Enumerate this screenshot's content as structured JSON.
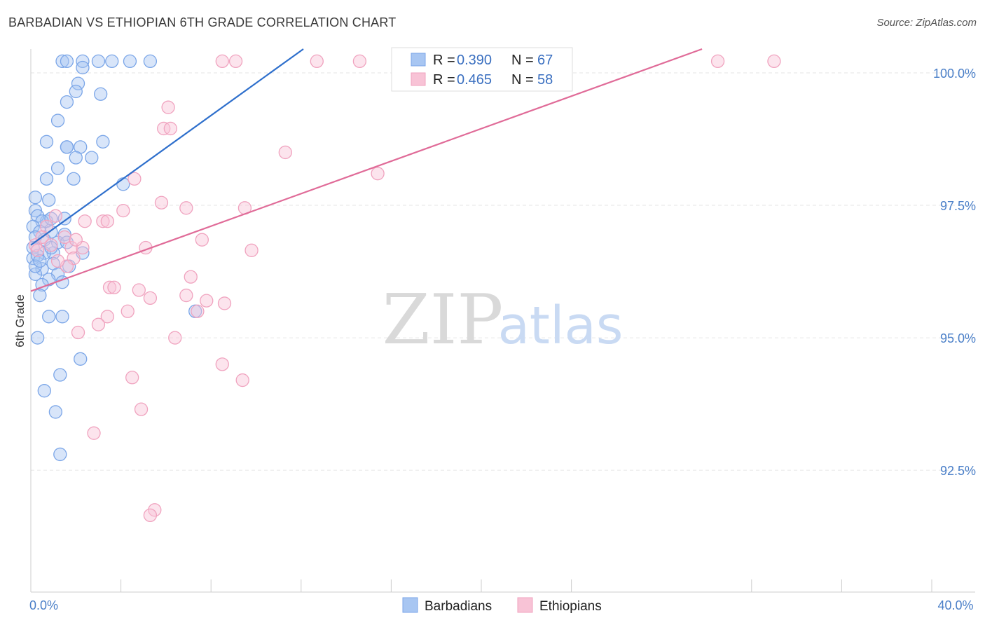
{
  "chart_data": {
    "type": "scatter",
    "title": "BARBADIAN VS ETHIOPIAN 6TH GRADE CORRELATION CHART",
    "source": "Source: ZipAtlas.com",
    "watermark": {
      "zip": "ZIP",
      "atlas": "atlas"
    },
    "ylabel": "6th Grade",
    "xlabel": "",
    "xlim": [
      0,
      40
    ],
    "ylim": [
      90.2,
      100.45
    ],
    "x_ticks": [
      {
        "value": 0,
        "label": "0.0%"
      },
      {
        "value": 40,
        "label": "40.0%"
      }
    ],
    "x_minor_ticks": [
      4,
      8,
      12,
      16,
      20,
      24,
      32,
      36
    ],
    "y_ticks": [
      {
        "value": 100,
        "label": "100.0%"
      },
      {
        "value": 97.5,
        "label": "97.5%"
      },
      {
        "value": 95,
        "label": "95.0%"
      },
      {
        "value": 92.5,
        "label": "92.5%"
      }
    ],
    "legend": {
      "r_label": "R =",
      "n_label": "N =",
      "entries": [
        {
          "r": "0.390",
          "n": "67"
        },
        {
          "r": "0.465",
          "n": "58"
        }
      ]
    },
    "series": [
      {
        "name": "Barbadians",
        "color": "#7ba6e8",
        "fill": "#a8c6f2",
        "line_color": "#2e6fcc",
        "trend": [
          [
            0,
            96.75
          ],
          [
            12.1,
            100.45
          ]
        ],
        "points": [
          [
            1.4,
            100.22
          ],
          [
            1.6,
            100.22
          ],
          [
            2.3,
            100.22
          ],
          [
            3.0,
            100.22
          ],
          [
            3.6,
            100.22
          ],
          [
            4.4,
            100.22
          ],
          [
            5.3,
            100.22
          ],
          [
            2.3,
            100.1
          ],
          [
            2.1,
            99.8
          ],
          [
            2.0,
            99.65
          ],
          [
            3.1,
            99.6
          ],
          [
            1.6,
            99.45
          ],
          [
            1.2,
            99.1
          ],
          [
            0.7,
            98.7
          ],
          [
            1.6,
            98.6
          ],
          [
            1.6,
            98.6
          ],
          [
            2.2,
            98.6
          ],
          [
            3.2,
            98.7
          ],
          [
            2.7,
            98.4
          ],
          [
            2.0,
            98.4
          ],
          [
            1.2,
            98.2
          ],
          [
            0.7,
            98.0
          ],
          [
            1.9,
            98.0
          ],
          [
            4.1,
            97.9
          ],
          [
            0.2,
            97.65
          ],
          [
            0.8,
            97.6
          ],
          [
            0.2,
            97.4
          ],
          [
            0.7,
            97.2
          ],
          [
            0.3,
            97.3
          ],
          [
            0.5,
            97.2
          ],
          [
            0.9,
            97.25
          ],
          [
            1.5,
            97.25
          ],
          [
            0.1,
            97.1
          ],
          [
            0.4,
            97.0
          ],
          [
            0.9,
            97.0
          ],
          [
            1.5,
            96.95
          ],
          [
            0.2,
            96.9
          ],
          [
            1.2,
            96.8
          ],
          [
            1.6,
            96.8
          ],
          [
            1.0,
            96.6
          ],
          [
            0.6,
            96.6
          ],
          [
            2.3,
            96.6
          ],
          [
            0.1,
            96.5
          ],
          [
            1.0,
            96.4
          ],
          [
            0.5,
            96.3
          ],
          [
            0.2,
            96.2
          ],
          [
            1.2,
            96.2
          ],
          [
            0.8,
            96.1
          ],
          [
            0.5,
            96.0
          ],
          [
            0.4,
            95.8
          ],
          [
            0.8,
            95.4
          ],
          [
            1.4,
            95.4
          ],
          [
            7.3,
            95.5
          ],
          [
            0.3,
            95.0
          ],
          [
            2.2,
            94.6
          ],
          [
            1.3,
            94.3
          ],
          [
            0.6,
            94.0
          ],
          [
            1.1,
            93.6
          ],
          [
            1.3,
            92.8
          ],
          [
            0.1,
            96.7
          ],
          [
            0.3,
            96.55
          ],
          [
            0.6,
            96.85
          ],
          [
            1.4,
            96.05
          ],
          [
            0.2,
            96.35
          ],
          [
            0.9,
            96.7
          ],
          [
            0.4,
            96.45
          ],
          [
            1.7,
            96.35
          ]
        ]
      },
      {
        "name": "Ethiopians",
        "color": "#f0a3bf",
        "fill": "#f8c3d6",
        "line_color": "#e06b98",
        "trend": [
          [
            0,
            95.88
          ],
          [
            29.8,
            100.45
          ]
        ],
        "points": [
          [
            8.5,
            100.22
          ],
          [
            9.1,
            100.22
          ],
          [
            12.7,
            100.22
          ],
          [
            14.6,
            100.22
          ],
          [
            18.3,
            100.22
          ],
          [
            20.8,
            100.22
          ],
          [
            30.5,
            100.22
          ],
          [
            33.0,
            100.22
          ],
          [
            6.1,
            99.35
          ],
          [
            5.9,
            98.95
          ],
          [
            6.2,
            98.95
          ],
          [
            11.3,
            98.5
          ],
          [
            15.4,
            98.1
          ],
          [
            4.6,
            98.0
          ],
          [
            5.8,
            97.55
          ],
          [
            6.9,
            97.45
          ],
          [
            4.1,
            97.4
          ],
          [
            9.5,
            97.45
          ],
          [
            1.1,
            97.3
          ],
          [
            2.4,
            97.2
          ],
          [
            3.2,
            97.2
          ],
          [
            3.4,
            97.2
          ],
          [
            0.7,
            97.1
          ],
          [
            1.5,
            96.9
          ],
          [
            7.6,
            96.85
          ],
          [
            0.2,
            96.75
          ],
          [
            0.9,
            96.75
          ],
          [
            1.8,
            96.7
          ],
          [
            2.3,
            96.7
          ],
          [
            5.1,
            96.7
          ],
          [
            9.8,
            96.65
          ],
          [
            1.9,
            96.5
          ],
          [
            1.6,
            96.35
          ],
          [
            7.1,
            96.15
          ],
          [
            3.5,
            95.95
          ],
          [
            3.7,
            95.95
          ],
          [
            4.8,
            95.9
          ],
          [
            6.9,
            95.8
          ],
          [
            5.3,
            95.75
          ],
          [
            7.8,
            95.7
          ],
          [
            8.6,
            95.65
          ],
          [
            4.3,
            95.5
          ],
          [
            7.4,
            95.5
          ],
          [
            3.4,
            95.4
          ],
          [
            3.0,
            95.25
          ],
          [
            2.1,
            95.1
          ],
          [
            6.4,
            95.0
          ],
          [
            8.5,
            94.5
          ],
          [
            4.5,
            94.25
          ],
          [
            9.4,
            94.2
          ],
          [
            4.9,
            93.65
          ],
          [
            2.8,
            93.2
          ],
          [
            5.5,
            91.75
          ],
          [
            5.3,
            91.65
          ],
          [
            0.5,
            96.9
          ],
          [
            1.2,
            96.45
          ],
          [
            0.3,
            96.65
          ],
          [
            2.0,
            96.85
          ]
        ]
      }
    ]
  }
}
